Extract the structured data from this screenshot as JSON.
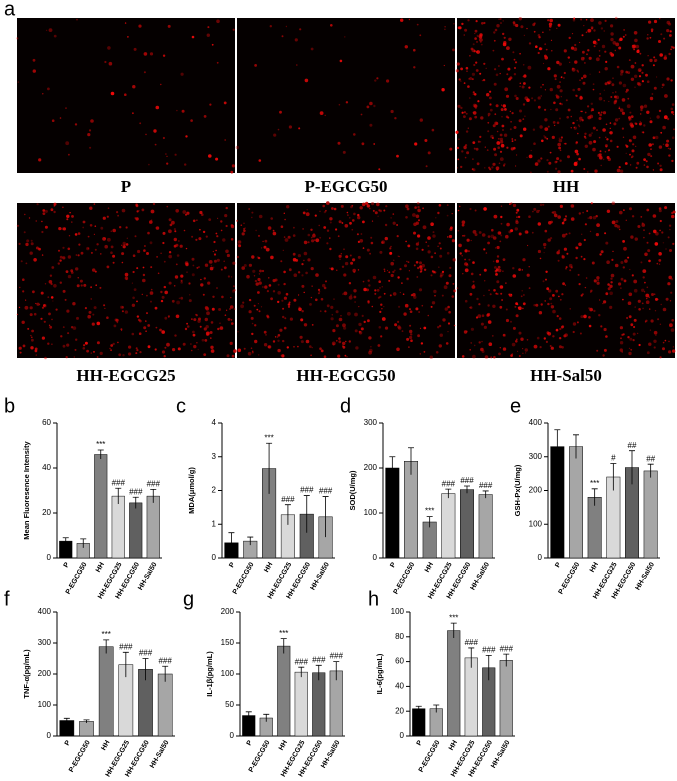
{
  "panel_a": {
    "label": "a",
    "images": [
      "P",
      "P-EGCG50",
      "HH",
      "HH-EGCG25",
      "HH-EGCG50",
      "HH-Sal50"
    ]
  },
  "chart_data": [
    {
      "type": "bar",
      "panel": "b",
      "y_label": "Mean Fluoresence Intensity",
      "categories": [
        "P",
        "P-EGCG50",
        "HH",
        "HH-EGCG25",
        "HH-EGCG50",
        "HH-Sal50"
      ],
      "values": [
        7.5,
        6.5,
        46,
        27.5,
        24.5,
        27.5
      ],
      "errors": [
        1.5,
        2,
        2,
        3.5,
        2.5,
        3
      ],
      "annotations": [
        null,
        null,
        "***",
        "###",
        "###",
        "###"
      ],
      "colors": [
        "#000000",
        "#a6a6a6",
        "#808080",
        "#d9d9d9",
        "#606060",
        "#a6a6a6"
      ],
      "ylim": [
        0,
        60
      ],
      "yticks": [
        0,
        20,
        40,
        60
      ]
    },
    {
      "type": "bar",
      "panel": "c",
      "y_label": "MDA(μmol/g)",
      "categories": [
        "P",
        "P-EGCG50",
        "HH",
        "HH-EGCG25",
        "HH-EGCG50",
        "HH-Sal50"
      ],
      "values": [
        0.45,
        0.5,
        2.65,
        1.28,
        1.3,
        1.22
      ],
      "errors": [
        0.3,
        0.12,
        0.75,
        0.3,
        0.55,
        0.6
      ],
      "annotations": [
        null,
        null,
        "***",
        "###",
        "###",
        "###"
      ],
      "colors": [
        "#000000",
        "#a6a6a6",
        "#808080",
        "#d9d9d9",
        "#606060",
        "#a6a6a6"
      ],
      "ylim": [
        0,
        4
      ],
      "yticks": [
        0,
        1,
        2,
        3,
        4
      ]
    },
    {
      "type": "bar",
      "panel": "d",
      "y_label": "SOD(U/mg)",
      "categories": [
        "P",
        "P-EGCG50",
        "HH",
        "HH-EGCG25",
        "HH-EGCG50",
        "HH-Sal50"
      ],
      "values": [
        200,
        215,
        80,
        143,
        152,
        141
      ],
      "errors": [
        25,
        30,
        12,
        10,
        8,
        8
      ],
      "annotations": [
        null,
        null,
        "***",
        "###",
        "###",
        "###"
      ],
      "colors": [
        "#000000",
        "#a6a6a6",
        "#808080",
        "#d9d9d9",
        "#606060",
        "#a6a6a6"
      ],
      "ylim": [
        0,
        300
      ],
      "yticks": [
        0,
        100,
        200,
        300
      ]
    },
    {
      "type": "bar",
      "panel": "e",
      "y_label": "GSH-Px(U/mg)",
      "categories": [
        "P",
        "P-EGCG50",
        "HH",
        "HH-EGCG25",
        "HH-EGCG50",
        "HH-Sal50"
      ],
      "values": [
        330,
        330,
        180,
        240,
        268,
        258
      ],
      "errors": [
        50,
        35,
        25,
        40,
        50,
        20
      ],
      "annotations": [
        null,
        null,
        "***",
        "#",
        "##",
        "##"
      ],
      "colors": [
        "#000000",
        "#a6a6a6",
        "#808080",
        "#d9d9d9",
        "#606060",
        "#a6a6a6"
      ],
      "ylim": [
        0,
        400
      ],
      "yticks": [
        0,
        100,
        200,
        300,
        400
      ]
    },
    {
      "type": "bar",
      "panel": "f",
      "y_label": "TNF-α(pg/mL)",
      "categories": [
        "P",
        "P-EGCG50",
        "HH",
        "HH-EGCG25",
        "HH-EGCG50",
        "HH-Sal50"
      ],
      "values": [
        50,
        47,
        288,
        230,
        215,
        200
      ],
      "errors": [
        7,
        5,
        22,
        40,
        35,
        25
      ],
      "annotations": [
        null,
        null,
        "***",
        "###",
        "###",
        "###"
      ],
      "colors": [
        "#000000",
        "#a6a6a6",
        "#808080",
        "#d9d9d9",
        "#606060",
        "#a6a6a6"
      ],
      "ylim": [
        0,
        400
      ],
      "yticks": [
        0,
        100,
        200,
        300,
        400
      ]
    },
    {
      "type": "bar",
      "panel": "g",
      "y_label": "IL-1β(pg/mL)",
      "categories": [
        "P",
        "P-EGCG50",
        "HH",
        "HH-EGCG25",
        "HH-EGCG50",
        "HH-Sal50"
      ],
      "values": [
        33,
        29,
        145,
        103,
        102,
        105
      ],
      "errors": [
        6,
        6,
        12,
        8,
        12,
        15
      ],
      "annotations": [
        null,
        null,
        "***",
        "###",
        "###",
        "###"
      ],
      "colors": [
        "#000000",
        "#a6a6a6",
        "#808080",
        "#d9d9d9",
        "#606060",
        "#a6a6a6"
      ],
      "ylim": [
        0,
        200
      ],
      "yticks": [
        0,
        50,
        100,
        150,
        200
      ]
    },
    {
      "type": "bar",
      "panel": "h",
      "y_label": "IL-6(pg/mL)",
      "categories": [
        "P",
        "P-EGCG50",
        "HH",
        "HH-EGCG25",
        "HH-EGCG50",
        "HH-Sal50"
      ],
      "values": [
        22,
        22,
        85,
        63,
        55,
        61
      ],
      "errors": [
        2,
        3,
        6,
        8,
        10,
        5
      ],
      "annotations": [
        null,
        null,
        "***",
        "###",
        "###",
        "###"
      ],
      "colors": [
        "#000000",
        "#a6a6a6",
        "#808080",
        "#d9d9d9",
        "#606060",
        "#a6a6a6"
      ],
      "ylim": [
        0,
        100
      ],
      "yticks": [
        0,
        20,
        40,
        60,
        80,
        100
      ]
    }
  ]
}
